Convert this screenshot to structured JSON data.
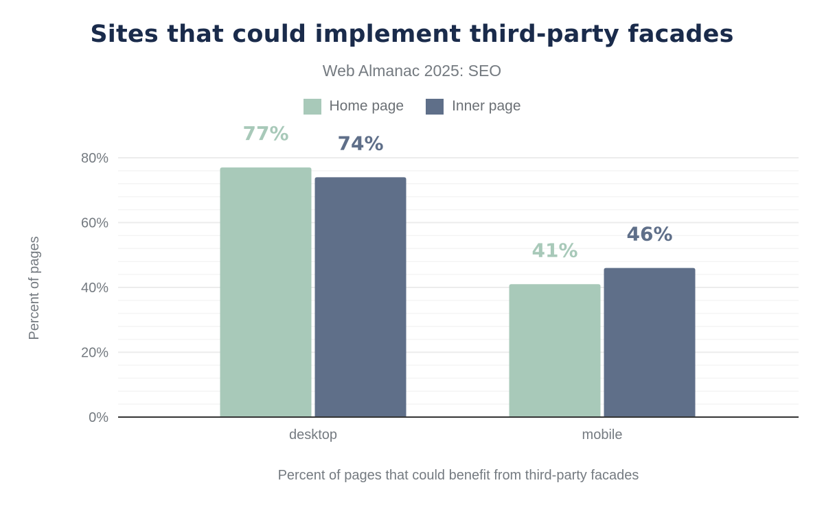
{
  "chart_data": {
    "type": "bar",
    "title": "Sites that could implement third-party facades",
    "subtitle": "Web Almanac 2025: SEO",
    "categories": [
      "desktop",
      "mobile"
    ],
    "series": [
      {
        "name": "Home page",
        "color": "#a8c9b9",
        "values": [
          77,
          41
        ],
        "labels": [
          "77%",
          "41%"
        ]
      },
      {
        "name": "Inner page",
        "color": "#5f6f89",
        "values": [
          74,
          46
        ],
        "labels": [
          "74%",
          "46%"
        ]
      }
    ],
    "xlabel": "Percent of pages that could benefit from third-party facades",
    "ylabel": "Percent of pages",
    "ylim": [
      0,
      80
    ],
    "yticks": [
      0,
      20,
      40,
      60,
      80
    ],
    "ytick_labels": [
      "0%",
      "20%",
      "40%",
      "60%",
      "80%"
    ],
    "grid": true,
    "legend_position": "top"
  }
}
